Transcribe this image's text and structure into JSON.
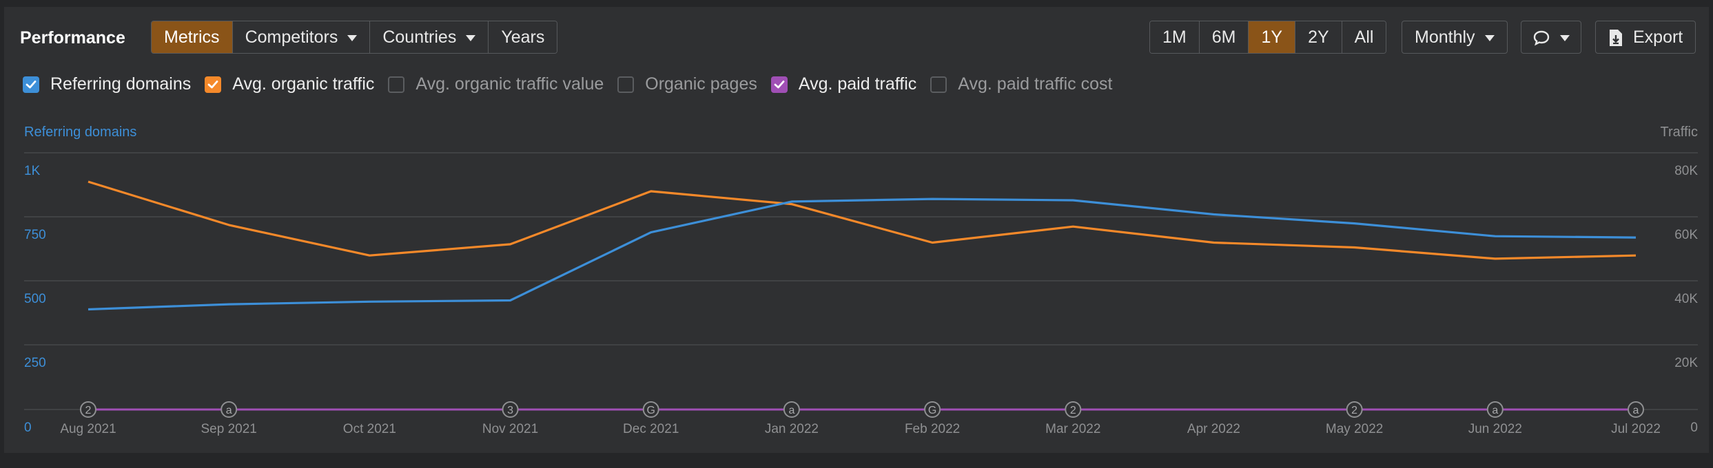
{
  "header": {
    "title": "Performance",
    "tabs": [
      "Metrics",
      "Competitors",
      "Countries",
      "Years"
    ],
    "tabs_active": 0,
    "ranges": [
      "1M",
      "6M",
      "1Y",
      "2Y",
      "All"
    ],
    "ranges_active": 2,
    "interval": "Monthly",
    "export_label": "Export"
  },
  "legend": [
    {
      "label": "Referring domains",
      "checked": true,
      "color": "#3d8fd8"
    },
    {
      "label": "Avg. organic traffic",
      "checked": true,
      "color": "#f5892a"
    },
    {
      "label": "Avg. organic traffic value",
      "checked": false,
      "color": "#5b5d60"
    },
    {
      "label": "Organic pages",
      "checked": false,
      "color": "#5b5d60"
    },
    {
      "label": "Avg. paid traffic",
      "checked": true,
      "color": "#a04fb5"
    },
    {
      "label": "Avg. paid traffic cost",
      "checked": false,
      "color": "#5b5d60"
    }
  ],
  "chart_data": {
    "type": "line",
    "left_axis_title": "Referring domains",
    "right_axis_title": "Traffic",
    "x": [
      "Aug 2021",
      "Sep 2021",
      "Oct 2021",
      "Nov 2021",
      "Dec 2021",
      "Jan 2022",
      "Feb 2022",
      "Mar 2022",
      "Apr 2022",
      "May 2022",
      "Jun 2022",
      "Jul 2022"
    ],
    "left_ticks": [
      "1K",
      "750",
      "500",
      "250",
      "0"
    ],
    "right_ticks": [
      "80K",
      "60K",
      "40K",
      "20K",
      "0"
    ],
    "left_ylim": [
      0,
      1000
    ],
    "right_ylim": [
      0,
      80000
    ],
    "grid": true,
    "series": [
      {
        "name": "Referring domains",
        "axis": "left",
        "color": "#3d8fd8",
        "values": [
          390,
          410,
          420,
          425,
          690,
          810,
          820,
          815,
          760,
          725,
          675,
          670
        ]
      },
      {
        "name": "Avg. organic traffic",
        "axis": "right",
        "color": "#f5892a",
        "values": [
          71000,
          57500,
          48000,
          51500,
          68000,
          64000,
          52000,
          57000,
          52000,
          50500,
          47000,
          48000
        ]
      },
      {
        "name": "Avg. paid traffic",
        "axis": "right",
        "color": "#a04fb5",
        "values": [
          0,
          0,
          0,
          0,
          0,
          0,
          0,
          0,
          0,
          0,
          0,
          0
        ]
      }
    ],
    "annotations": [
      "2",
      "a",
      "",
      "3",
      "G",
      "a",
      "G",
      "2",
      "",
      "2",
      "a",
      "a"
    ]
  }
}
